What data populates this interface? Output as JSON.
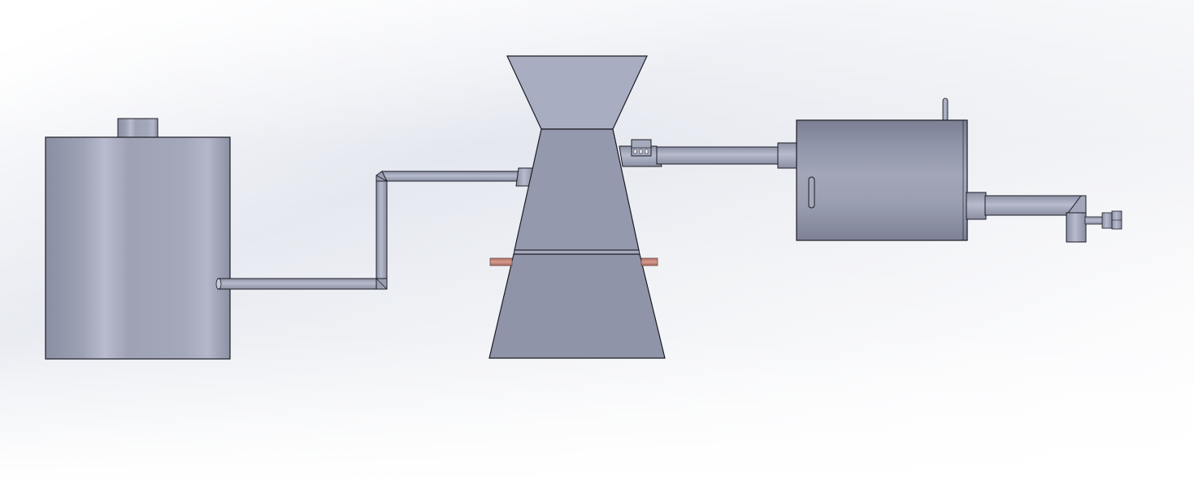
{
  "viewport": {
    "background": "cad-viewport-gradient"
  },
  "assembly": {
    "components": [
      "water-tank",
      "tank-outlet-pipe",
      "reactor-hopper",
      "reactor-frustum",
      "rod",
      "gas-outlet-pipe",
      "cylindrical-vessel",
      "vessel-outlet-pipe",
      "valve"
    ]
  },
  "colors": {
    "bg_top": "#d9dde7",
    "bg_mid": "#eceef3",
    "bg_bottom": "#ffffff",
    "steel_dark": "#8b8fa4",
    "steel_mid": "#9da1b5",
    "steel_light": "#b9bdd0",
    "edge": "#1c1c24",
    "rod": "#c9867a"
  }
}
